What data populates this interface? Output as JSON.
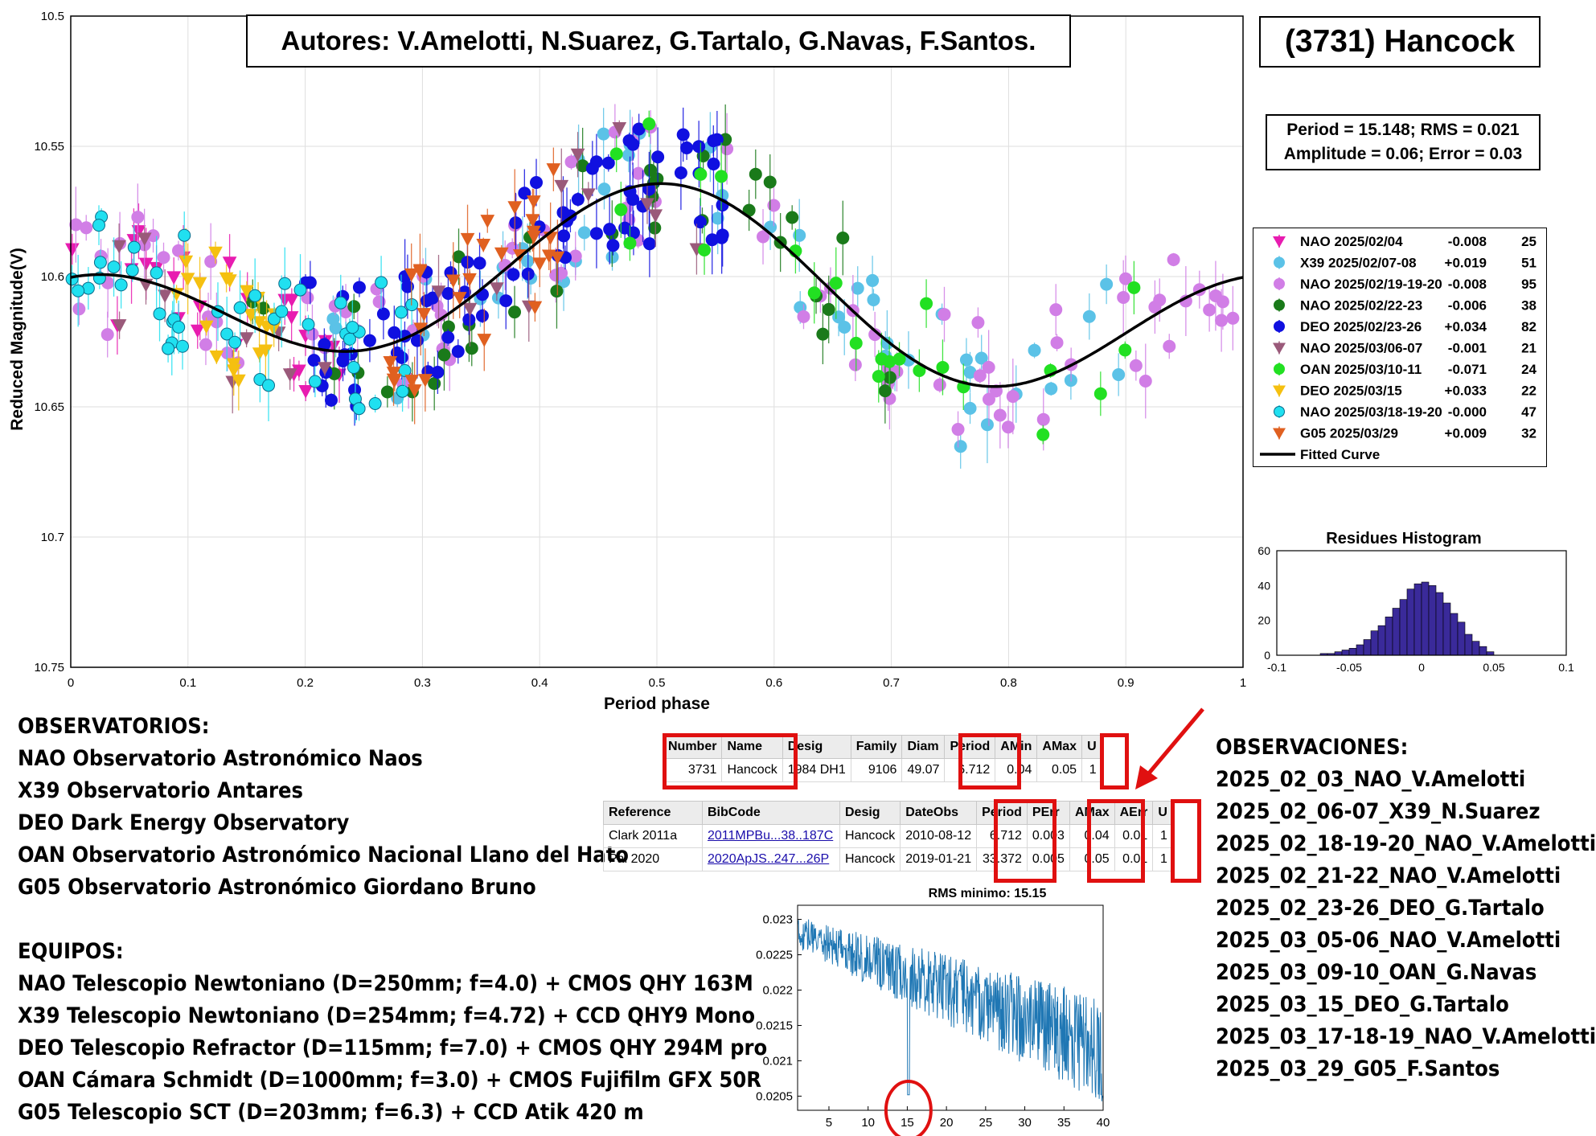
{
  "authors_box": "Autores: V.Amelotti, N.Suarez, G.Tartalo, G.Navas, F.Santos.",
  "object_box": "(3731) Hancock",
  "stats_box": {
    "line1": "Period =  15.148; RMS = 0.021",
    "line2": "Amplitude = 0.06; Error = 0.03"
  },
  "main_chart": {
    "type": "scatter",
    "xlabel": "Period phase",
    "ylabel": "Reduced Magnitude(V)",
    "xlim": [
      0,
      1
    ],
    "ylim": [
      10.75,
      10.5
    ],
    "y_reversed": true,
    "xticks": [
      "0",
      "0.1",
      "0.2",
      "0.3",
      "0.4",
      "0.5",
      "0.6",
      "0.7",
      "0.8",
      "0.9",
      "1"
    ],
    "yticks": [
      "10.5",
      "10.55",
      "10.6",
      "10.65",
      "10.7",
      "10.75"
    ],
    "grid": true,
    "legend_position": "right",
    "series": [
      {
        "name": "NAO 2025/02/04",
        "offset": "-0.008",
        "count": "25",
        "color": "#e81cb0",
        "marker": "triangle-down-filled",
        "phase_range": [
          0.0,
          0.23
        ],
        "center": 10.612
      },
      {
        "name": "X39 2025/02/07-08",
        "offset": "+0.019",
        "count": "51",
        "color": "#5bc2e7",
        "marker": "circle-filled",
        "phase_range": [
          0.22,
          0.9
        ],
        "center": 10.62
      },
      {
        "name": "NAO 2025/02/19-19-20",
        "offset": "-0.008",
        "count": "95",
        "color": "#d17ee6",
        "marker": "circle-filled",
        "phase_range": [
          0.0,
          1.0
        ],
        "center": 10.607
      },
      {
        "name": "NAO 2025/02/22-23",
        "offset": "-0.006",
        "count": "38",
        "color": "#1a7a1a",
        "marker": "circle-filled",
        "phase_range": [
          0.15,
          0.7
        ],
        "center": 10.605
      },
      {
        "name": "DEO 2025/02/23-26",
        "offset": "+0.034",
        "count": "82",
        "color": "#1010e0",
        "marker": "circle-filled",
        "phase_range": [
          0.2,
          0.58
        ],
        "center": 10.605
      },
      {
        "name": "NAO 2025/03/06-07",
        "offset": "-0.001",
        "count": "21",
        "color": "#9a5a7a",
        "marker": "triangle-down-filled",
        "phase_range": [
          0.0,
          0.55
        ],
        "center": 10.605
      },
      {
        "name": "OAN 2025/03/10-11",
        "offset": "-0.071",
        "count": "24",
        "color": "#22e022",
        "marker": "circle-filled",
        "phase_range": [
          0.44,
          0.92
        ],
        "center": 10.62
      },
      {
        "name": "DEO 2025/03/15",
        "offset": "+0.033",
        "count": "22",
        "color": "#f5c010",
        "marker": "triangle-down-filled",
        "phase_range": [
          0.09,
          0.18
        ],
        "center": 10.605
      },
      {
        "name": "NAO 2025/03/18-19-20",
        "offset": "-0.000",
        "count": "47",
        "color": "#20e0f0",
        "marker": "circle-filled",
        "phase_range": [
          0.0,
          0.3
        ],
        "center": 10.612
      },
      {
        "name": "G05 2025/03/29",
        "offset": "+0.009",
        "count": "32",
        "color": "#e06020",
        "marker": "triangle-down-filled",
        "phase_range": [
          0.27,
          0.42
        ],
        "center": 10.618
      }
    ],
    "fitted_curve": {
      "name": "Fitted Curve",
      "period_h": 15.148,
      "amplitude": 0.06
    }
  },
  "histogram": {
    "type": "bar",
    "title": "Residues Histogram",
    "xlim": [
      -0.1,
      0.1
    ],
    "ylim": [
      0,
      60
    ],
    "xticks": [
      "-0.1",
      "-0.05",
      "0",
      "0.05",
      "0.1"
    ],
    "yticks": [
      "0",
      "20",
      "40",
      "60"
    ],
    "bin_centers": [
      -0.0675,
      -0.0625,
      -0.0575,
      -0.0525,
      -0.0475,
      -0.0425,
      -0.0375,
      -0.0325,
      -0.0275,
      -0.0225,
      -0.0175,
      -0.0125,
      -0.0075,
      -0.0025,
      0.0025,
      0.0075,
      0.0125,
      0.0175,
      0.0225,
      0.0275,
      0.0325,
      0.0375,
      0.0425,
      0.0475
    ],
    "values": [
      1,
      1,
      2,
      3,
      4,
      6,
      9,
      14,
      17,
      22,
      27,
      32,
      38,
      41,
      42,
      40,
      36,
      30,
      24,
      19,
      12,
      8,
      5,
      2
    ],
    "color": "#3a2a9a"
  },
  "periodogram": {
    "type": "line",
    "title": "RMS minimo: 15.15",
    "xlim": [
      1,
      40
    ],
    "ylim": [
      0.0203,
      0.0232
    ],
    "xticks": [
      "5",
      "10",
      "15",
      "20",
      "25",
      "30",
      "35",
      "40"
    ],
    "yticks": [
      "0.0205",
      "0.021",
      "0.0215",
      "0.022",
      "0.0225",
      "0.023"
    ],
    "min_period": 15.15,
    "color": "#1f77b4"
  },
  "observatorios": {
    "heading": "OBSERVATORIOS:",
    "items": [
      "NAO Observatorio Astronómico Naos",
      "X39 Observatorio Antares",
      "DEO Dark Energy Observatory",
      "OAN Observatorio Astronómico Nacional Llano del Hato",
      "G05 Observatorio Astronómico Giordano Bruno"
    ]
  },
  "equipos": {
    "heading": "EQUIPOS:",
    "items": [
      "NAO Telescopio Newtoniano (D=250mm; f=4.0) + CMOS QHY 163M",
      "X39 Telescopio Newtoniano (D=254mm; f=4.72) + CCD QHY9 Mono",
      "DEO Telescopio Refractor (D=115mm; f=7.0) + CMOS QHY 294M pro",
      "OAN Cámara Schmidt (D=1000mm; f=3.0) + CMOS Fujifilm GFX 50R",
      "G05 Telescopio SCT (D=203mm; f=6.3) + CCD Atik 420 m"
    ]
  },
  "observaciones": {
    "heading": "OBSERVACIONES:",
    "items": [
      "2025_02_03_NAO_V.Amelotti",
      "2025_02_06-07_X39_N.Suarez",
      "2025_02_18-19-20_NAO_V.Amelotti",
      "2025_02_21-22_NAO_V.Amelotti",
      "2025_02_23-26_DEO_G.Tartalo",
      "2025_03_05-06_NAO_V.Amelotti",
      "2025_03_09-10_OAN_G.Navas",
      "2025_03_15_DEO_G.Tartalo",
      "2025_03_17-18-19_NAO_V.Amelotti",
      "2025_03_29_G05_F.Santos"
    ]
  },
  "lcdb_table": {
    "headers": [
      "Number",
      "Name",
      "Desig",
      "Family",
      "Diam",
      "Period",
      "AMin",
      "AMax",
      "U"
    ],
    "row": [
      "3731",
      "Hancock",
      "1984 DH1",
      "9106",
      "49.07",
      "6.712",
      "0.04",
      "0.05",
      "1"
    ]
  },
  "ref_table": {
    "headers": [
      "Reference",
      "BibCode",
      "Desig",
      "DateObs",
      "Period",
      "PErr",
      "AMax",
      "AErr",
      "U"
    ],
    "rows": [
      [
        "Clark 2011a",
        "2011MPBu...38..187C",
        "Hancock",
        "2010-08-12",
        "6.712",
        "0.003",
        "0.04",
        "0.01",
        "1"
      ],
      [
        "Pal 2020",
        "2020ApJS..247...26P",
        "Hancock",
        "2019-01-21",
        "33.372",
        "0.005",
        "0.05",
        "0.01",
        "1"
      ]
    ]
  },
  "annotation_color": "#e01010"
}
